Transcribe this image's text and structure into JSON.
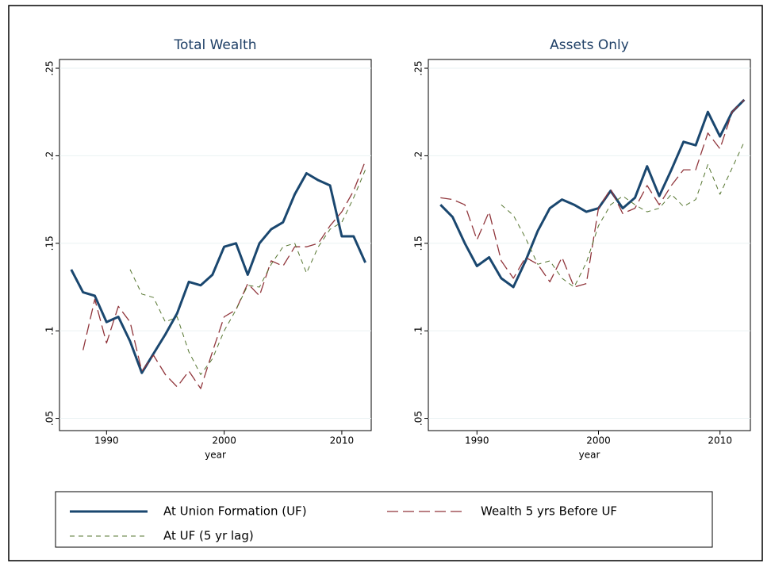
{
  "chart_data": [
    {
      "type": "line",
      "title": "Total Wealth",
      "x_label": "year",
      "x": [
        1987,
        1988,
        1989,
        1990,
        1991,
        1992,
        1993,
        1994,
        1995,
        1996,
        1997,
        1998,
        1999,
        2000,
        2001,
        2002,
        2003,
        2004,
        2005,
        2006,
        2007,
        2008,
        2009,
        2010,
        2011,
        2012
      ],
      "series": [
        {
          "name": "At Union Formation (UF)",
          "color": "#1a476f",
          "values": [
            0.135,
            0.122,
            0.12,
            0.105,
            0.108,
            0.094,
            0.076,
            0.087,
            0.098,
            0.11,
            0.128,
            0.126,
            0.132,
            0.148,
            0.15,
            0.132,
            0.15,
            0.158,
            0.162,
            0.178,
            0.19,
            0.186,
            0.183,
            0.154,
            0.154,
            0.139
          ]
        },
        {
          "name": "Wealth 5 yrs Before UF",
          "color": "#90353b",
          "values": [
            null,
            0.089,
            0.118,
            0.093,
            0.114,
            0.105,
            0.077,
            0.086,
            0.075,
            0.068,
            0.077,
            0.067,
            0.088,
            0.108,
            0.112,
            0.127,
            0.12,
            0.14,
            0.137,
            0.148,
            0.148,
            0.15,
            0.16,
            0.168,
            0.18,
            0.197
          ]
        },
        {
          "name": "At UF (5 yr lag)",
          "color": "#55752f",
          "values": [
            null,
            null,
            null,
            null,
            null,
            0.135,
            0.121,
            0.119,
            0.105,
            0.108,
            0.088,
            0.075,
            0.084,
            0.1,
            0.112,
            0.126,
            0.125,
            0.138,
            0.148,
            0.15,
            0.133,
            0.148,
            0.158,
            0.162,
            0.176,
            0.192
          ]
        }
      ],
      "xlim": [
        1986,
        2012.5
      ],
      "xticks": [
        1990,
        2000,
        2010
      ],
      "ylim": [
        0.043,
        0.255
      ],
      "yticks": [
        {
          "value": 0.05,
          "label": ".05"
        },
        {
          "value": 0.1,
          "label": ".1"
        },
        {
          "value": 0.15,
          "label": ".15"
        },
        {
          "value": 0.2,
          "label": ".2"
        },
        {
          "value": 0.25,
          "label": ".25"
        }
      ],
      "grid": true
    },
    {
      "type": "line",
      "title": "Assets Only",
      "x_label": "year",
      "x": [
        1987,
        1988,
        1989,
        1990,
        1991,
        1992,
        1993,
        1994,
        1995,
        1996,
        1997,
        1998,
        1999,
        2000,
        2001,
        2002,
        2003,
        2004,
        2005,
        2006,
        2007,
        2008,
        2009,
        2010,
        2011,
        2012
      ],
      "series": [
        {
          "name": "At Union Formation (UF)",
          "color": "#1a476f",
          "values": [
            0.172,
            0.165,
            0.15,
            0.137,
            0.142,
            0.13,
            0.125,
            0.14,
            0.157,
            0.17,
            0.175,
            0.172,
            0.168,
            0.17,
            0.18,
            0.17,
            0.176,
            0.194,
            0.177,
            0.192,
            0.208,
            0.206,
            0.225,
            0.211,
            0.225,
            0.232
          ]
        },
        {
          "name": "Wealth 5 yrs Before UF",
          "color": "#90353b",
          "values": [
            0.176,
            0.175,
            0.172,
            0.152,
            0.168,
            0.14,
            0.13,
            0.142,
            0.138,
            0.128,
            0.142,
            0.125,
            0.127,
            0.17,
            0.181,
            0.167,
            0.17,
            0.183,
            0.172,
            0.183,
            0.192,
            0.192,
            0.213,
            0.204,
            0.225,
            0.232
          ]
        },
        {
          "name": "At UF (5 yr lag)",
          "color": "#55752f",
          "values": [
            null,
            null,
            null,
            null,
            null,
            0.172,
            0.166,
            0.153,
            0.138,
            0.14,
            0.13,
            0.125,
            0.139,
            0.16,
            0.172,
            0.177,
            0.172,
            0.168,
            0.17,
            0.178,
            0.171,
            0.175,
            0.195,
            0.178,
            0.193,
            0.208
          ]
        }
      ],
      "xlim": [
        1986,
        2012.5
      ],
      "xticks": [
        1990,
        2000,
        2010
      ],
      "ylim": [
        0.043,
        0.255
      ],
      "yticks": [
        {
          "value": 0.05,
          "label": ".05"
        },
        {
          "value": 0.1,
          "label": ".1"
        },
        {
          "value": 0.15,
          "label": ".15"
        },
        {
          "value": 0.2,
          "label": ".2"
        },
        {
          "value": 0.25,
          "label": ".25"
        }
      ],
      "grid": true
    }
  ]
}
